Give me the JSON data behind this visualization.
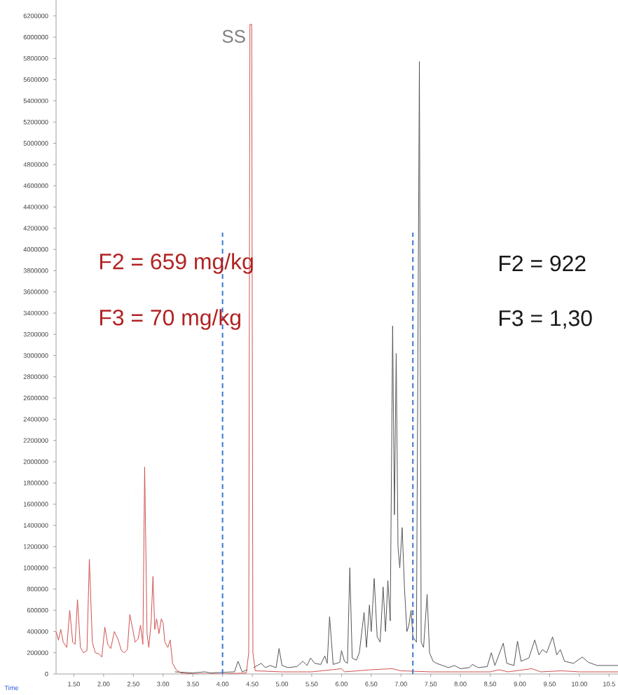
{
  "chart_data": {
    "type": "line",
    "xlabel": "Time",
    "xlim": [
      1.2,
      10.65
    ],
    "ylim": [
      0,
      6350000
    ],
    "xticks": [
      {
        "value": 1.5,
        "label": "1.50"
      },
      {
        "value": 2.0,
        "label": "2.00"
      },
      {
        "value": 2.5,
        "label": "2.50"
      },
      {
        "value": 3.0,
        "label": "3.00"
      },
      {
        "value": 3.5,
        "label": "3.50"
      },
      {
        "value": 4.0,
        "label": "4.00"
      },
      {
        "value": 4.5,
        "label": "4.50"
      },
      {
        "value": 5.0,
        "label": "5.00"
      },
      {
        "value": 5.5,
        "label": "5.50"
      },
      {
        "value": 6.0,
        "label": "6.00"
      },
      {
        "value": 6.5,
        "label": "6.50"
      },
      {
        "value": 7.0,
        "label": "7.00"
      },
      {
        "value": 7.5,
        "label": "7.50"
      },
      {
        "value": 8.0,
        "label": "8.00"
      },
      {
        "value": 8.5,
        "label": "8.50"
      },
      {
        "value": 9.0,
        "label": "9.00"
      },
      {
        "value": 9.5,
        "label": "9.50"
      },
      {
        "value": 10.0,
        "label": "10.00"
      },
      {
        "value": 10.5,
        "label": "10.5"
      }
    ],
    "yticks": [
      0,
      200000,
      400000,
      600000,
      800000,
      1000000,
      1200000,
      1400000,
      1600000,
      1800000,
      2000000,
      2200000,
      2400000,
      2600000,
      2800000,
      3000000,
      3200000,
      3400000,
      3600000,
      3800000,
      4000000,
      4200000,
      4400000,
      4600000,
      4800000,
      5000000,
      5200000,
      5400000,
      5600000,
      5800000,
      6000000,
      6200000
    ],
    "marker": "none",
    "line_style": "solid",
    "series": [
      {
        "color": "#555555",
        "x": [
          3.2,
          3.5,
          3.7,
          3.8,
          4.2,
          4.26,
          4.33,
          4.42,
          4.46,
          4.48,
          4.52,
          4.65,
          4.72,
          4.8,
          4.9,
          4.95,
          5.0,
          5.1,
          5.25,
          5.35,
          5.42,
          5.48,
          5.55,
          5.65,
          5.72,
          5.76,
          5.8,
          5.86,
          5.97,
          6.0,
          6.05,
          6.1,
          6.14,
          6.18,
          6.25,
          6.3,
          6.38,
          6.42,
          6.47,
          6.5,
          6.55,
          6.6,
          6.65,
          6.7,
          6.74,
          6.78,
          6.82,
          6.86,
          6.89,
          6.92,
          6.95,
          6.98,
          7.02,
          7.06,
          7.1,
          7.13,
          7.17,
          7.2,
          7.26,
          7.31,
          7.34,
          7.38,
          7.44,
          7.48,
          7.54,
          7.6,
          7.7,
          7.8,
          7.9,
          8.0,
          8.15,
          8.2,
          8.3,
          8.45,
          8.52,
          8.58,
          8.72,
          8.78,
          8.9,
          8.96,
          9.02,
          9.15,
          9.25,
          9.32,
          9.38,
          9.45,
          9.55,
          9.62,
          9.68,
          9.75,
          9.9,
          10.05,
          10.15,
          10.3,
          10.65
        ],
        "values": [
          20000,
          10000,
          20000,
          10000,
          20000,
          120000,
          20000,
          40000,
          null,
          null,
          60000,
          100000,
          60000,
          80000,
          60000,
          240000,
          80000,
          60000,
          70000,
          120000,
          80000,
          150000,
          100000,
          90000,
          170000,
          100000,
          540000,
          90000,
          110000,
          220000,
          120000,
          100000,
          1000000,
          150000,
          130000,
          200000,
          580000,
          250000,
          650000,
          400000,
          900000,
          350000,
          300000,
          820000,
          400000,
          880000,
          500000,
          3280000,
          1500000,
          3020000,
          1200000,
          1000000,
          1380000,
          800000,
          400000,
          450000,
          600000,
          350000,
          300000,
          5770000,
          300000,
          250000,
          750000,
          200000,
          120000,
          100000,
          80000,
          60000,
          80000,
          50000,
          60000,
          90000,
          60000,
          70000,
          200000,
          80000,
          290000,
          100000,
          80000,
          310000,
          120000,
          150000,
          320000,
          180000,
          230000,
          200000,
          350000,
          180000,
          230000,
          120000,
          100000,
          160000,
          110000,
          80000,
          80000
        ]
      },
      {
        "color": "#d05050",
        "x": [
          1.2,
          1.24,
          1.28,
          1.32,
          1.38,
          1.43,
          1.48,
          1.52,
          1.56,
          1.61,
          1.66,
          1.72,
          1.76,
          1.81,
          1.86,
          1.92,
          1.97,
          2.02,
          2.07,
          2.12,
          2.18,
          2.24,
          2.3,
          2.35,
          2.4,
          2.44,
          2.49,
          2.53,
          2.58,
          2.62,
          2.66,
          2.69,
          2.73,
          2.76,
          2.8,
          2.83,
          2.86,
          2.89,
          2.93,
          2.97,
          3.0,
          3.03,
          3.08,
          3.12,
          3.16,
          3.22,
          3.3,
          3.5,
          4.0,
          4.4,
          4.44,
          4.46,
          4.49,
          4.51,
          4.55,
          5.0,
          5.5,
          6.0,
          6.05,
          6.5,
          6.85,
          7.0,
          7.5,
          8.0,
          8.5,
          8.65,
          8.8,
          9.2,
          9.35,
          9.7,
          10.0,
          10.65
        ],
        "values": [
          400000,
          320000,
          420000,
          300000,
          250000,
          600000,
          300000,
          280000,
          700000,
          250000,
          200000,
          220000,
          1080000,
          300000,
          200000,
          190000,
          160000,
          440000,
          280000,
          240000,
          400000,
          330000,
          220000,
          200000,
          230000,
          560000,
          420000,
          300000,
          330000,
          460000,
          280000,
          1950000,
          380000,
          250000,
          500000,
          920000,
          420000,
          520000,
          380000,
          520000,
          480000,
          300000,
          250000,
          320000,
          100000,
          40000,
          10000,
          0,
          0,
          10000,
          200000,
          6120000,
          6120000,
          200000,
          30000,
          20000,
          20000,
          50000,
          20000,
          40000,
          50000,
          30000,
          20000,
          20000,
          20000,
          40000,
          20000,
          50000,
          20000,
          30000,
          20000,
          20000
        ]
      }
    ],
    "ref_lines": [
      {
        "axis": "x",
        "value": 4.0,
        "color": "#3a78d0",
        "line_style": "dashed"
      },
      {
        "axis": "x",
        "value": 7.2,
        "color": "#3a78d0",
        "line_style": "dashed"
      }
    ],
    "annotations": [
      "SS",
      "F2 = 659 mg/kg",
      "F3 = 70 mg/kg",
      "F2 = 922",
      "F3 = 1,30"
    ]
  }
}
